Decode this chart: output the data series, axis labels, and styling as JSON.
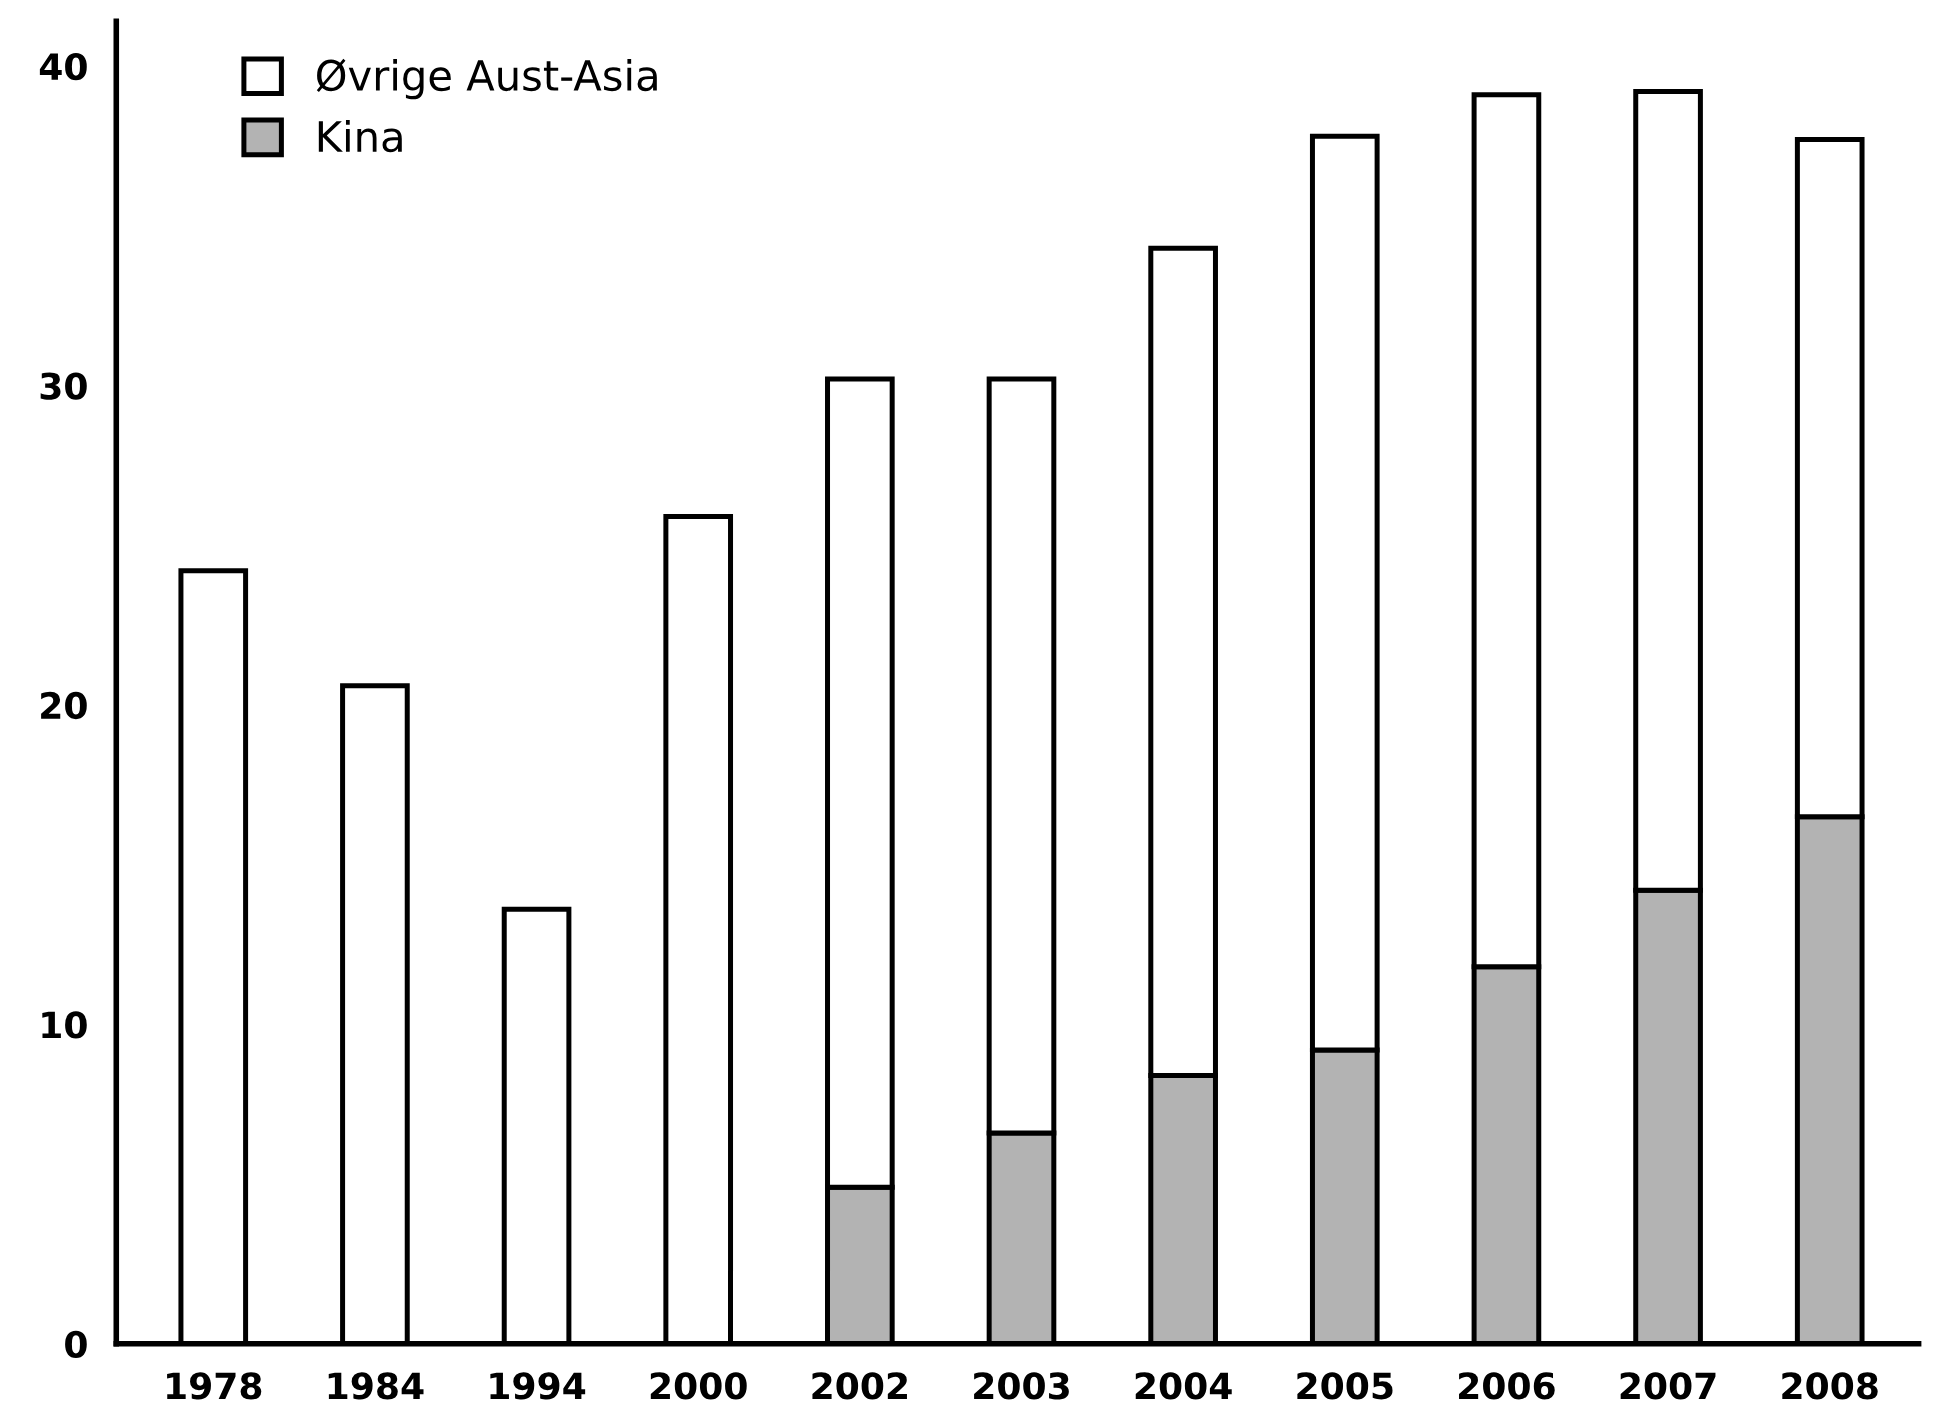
{
  "chart_data": {
    "type": "bar",
    "stacked": true,
    "categories": [
      "1978",
      "1984",
      "1994",
      "2000",
      "2002",
      "2003",
      "2004",
      "2005",
      "2006",
      "2007",
      "2008"
    ],
    "series": [
      {
        "name": "Kina",
        "color": "#b3b3b3",
        "values": [
          null,
          null,
          null,
          null,
          4.9,
          6.6,
          8.4,
          9.2,
          11.8,
          14.2,
          16.5
        ]
      },
      {
        "name": "Øvrige Aust-Asia",
        "color": "#ffffff",
        "values": [
          24.2,
          20.6,
          13.6,
          25.9,
          25.3,
          23.6,
          25.9,
          28.6,
          27.3,
          25.0,
          21.2
        ]
      }
    ],
    "ylim": [
      0,
      41.4
    ],
    "yticks": [
      0,
      10,
      20,
      30,
      40
    ],
    "grid": false,
    "legend": "top left"
  }
}
